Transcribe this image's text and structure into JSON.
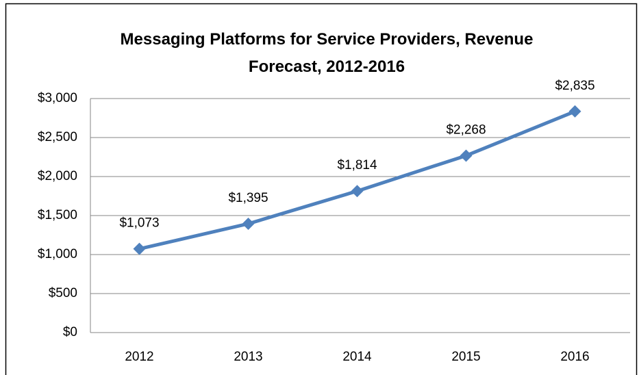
{
  "chart_data": {
    "type": "line",
    "title": "Messaging Platforms for Service Providers, Revenue Forecast, 2012-2016",
    "categories": [
      "2012",
      "2013",
      "2014",
      "2015",
      "2016"
    ],
    "values": [
      1073,
      1395,
      1814,
      2268,
      2835
    ],
    "value_labels": [
      "$1,073",
      "$1,395",
      "$1,814",
      "$2,268",
      "$2,835"
    ],
    "color": "#4f81bd",
    "ylim": [
      0,
      3000
    ],
    "yticks": [
      {
        "value": 0,
        "label": "$0"
      },
      {
        "value": 500,
        "label": "$500"
      },
      {
        "value": 1000,
        "label": "$1,000"
      },
      {
        "value": 1500,
        "label": "$1,500"
      },
      {
        "value": 2000,
        "label": "$2,000"
      },
      {
        "value": 2500,
        "label": "$2,500"
      },
      {
        "value": 3000,
        "label": "$3,000"
      }
    ],
    "grid": true
  }
}
